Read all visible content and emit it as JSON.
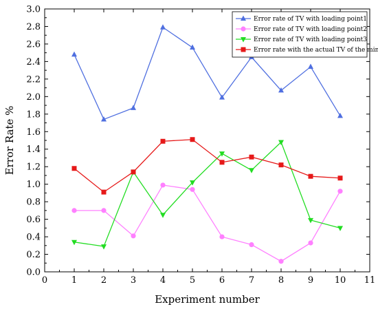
{
  "chart_data": {
    "type": "line",
    "title": "",
    "xlabel": "Experiment number",
    "ylabel": "Error Rate %",
    "xlim": [
      0,
      11
    ],
    "ylim": [
      0,
      3.0
    ],
    "x_ticks": [
      "0",
      "1",
      "2",
      "3",
      "4",
      "5",
      "6",
      "7",
      "8",
      "9",
      "10",
      "11"
    ],
    "y_ticks": [
      "0.0",
      "0.2",
      "0.4",
      "0.6",
      "0.8",
      "1.0",
      "1.2",
      "1.4",
      "1.6",
      "1.8",
      "2.0",
      "2.2",
      "2.4",
      "2.6",
      "2.8",
      "3.0"
    ],
    "grid": false,
    "legend_position": "top-right",
    "x": [
      1,
      2,
      3,
      4,
      5,
      6,
      7,
      8,
      9,
      10
    ],
    "series": [
      {
        "name": "Error rate of TV with loading point1",
        "color": "#4f6fe0",
        "marker": "triangle-up",
        "values": [
          2.48,
          1.74,
          1.87,
          2.79,
          2.56,
          1.99,
          2.45,
          2.07,
          2.34,
          1.78
        ]
      },
      {
        "name": "Error rate of TV with loading point2",
        "color": "#ff80ff",
        "marker": "circle",
        "values": [
          0.7,
          0.7,
          0.41,
          0.99,
          0.94,
          0.4,
          0.31,
          0.12,
          0.33,
          0.92
        ]
      },
      {
        "name": "Error rate of TV with loading point3",
        "color": "#22dd22",
        "marker": "triangle-down",
        "values": [
          0.34,
          0.29,
          1.14,
          0.65,
          1.02,
          1.35,
          1.16,
          1.48,
          0.59,
          0.5
        ]
      },
      {
        "name": "Error rate with the actual TV of the mine",
        "color": "#e61919",
        "marker": "square",
        "values": [
          1.18,
          0.91,
          1.14,
          1.49,
          1.51,
          1.25,
          1.31,
          1.22,
          1.09,
          1.07
        ]
      }
    ]
  }
}
